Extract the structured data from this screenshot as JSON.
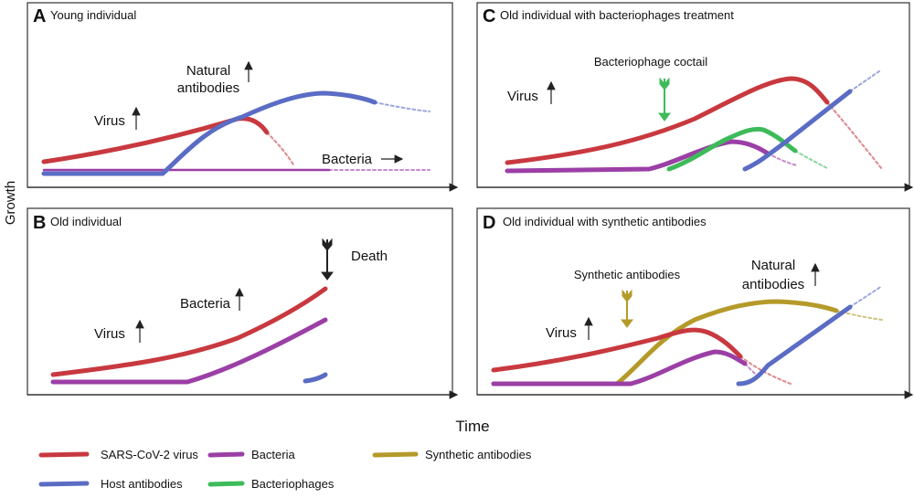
{
  "colors": {
    "virus": "#c8393f",
    "host_antibodies": "#5a6cc4",
    "bacteria": "#9b3fa6",
    "bacteriophages": "#3dbb5a",
    "synthetic_antibodies": "#b59a2a"
  },
  "axes": {
    "y_label": "Growth",
    "x_label": "Time"
  },
  "panels": {
    "a": {
      "letter": "A",
      "title": "Young individual",
      "labels": {
        "natural1": "Natural",
        "natural2": "antibodies",
        "virus": "Virus",
        "bacteria": "Bacteria"
      }
    },
    "b": {
      "letter": "B",
      "title": "Old individual",
      "labels": {
        "bacteria": "Bacteria",
        "virus": "Virus",
        "death": "Death"
      }
    },
    "c": {
      "letter": "C",
      "title": "Old individual with bacteriophages treatment",
      "labels": {
        "cocktail": "Bacteriophage coctail",
        "virus": "Virus"
      }
    },
    "d": {
      "letter": "D",
      "title": "Old individual with synthetic antibodies",
      "labels": {
        "synthetic": "Synthetic antibodies",
        "virus": "Virus",
        "natural1": "Natural",
        "natural2": "antibodies"
      }
    }
  },
  "legend": [
    {
      "label": "SARS-CoV-2 virus",
      "key": "virus"
    },
    {
      "label": "Bacteria",
      "key": "bacteria"
    },
    {
      "label": "Synthetic antibodies",
      "key": "synthetic_antibodies"
    },
    {
      "label": "Host antibodies",
      "key": "host_antibodies"
    },
    {
      "label": "Bacteriophages",
      "key": "bacteriophages"
    }
  ]
}
